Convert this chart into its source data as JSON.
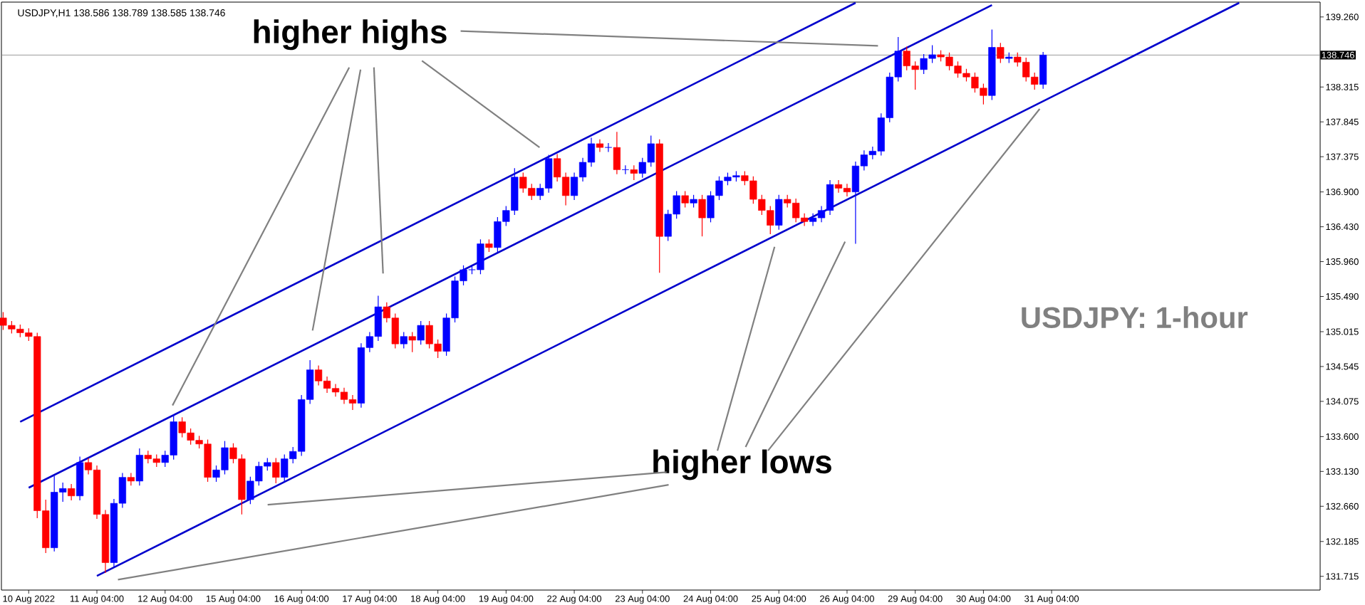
{
  "chart_data": {
    "type": "candlestick",
    "title": "USDJPY,H1  138.586 138.789 138.585 138.746",
    "categories": [
      null,
      null,
      null,
      "10 Aug 2022",
      null,
      null,
      null,
      null,
      null,
      null,
      null,
      "11 Aug 04:00",
      null,
      null,
      null,
      null,
      null,
      null,
      null,
      "12 Aug 04:00",
      null,
      null,
      null,
      null,
      null,
      null,
      null,
      "15 Aug 04:00",
      null,
      null,
      null,
      null,
      null,
      null,
      null,
      "16 Aug 04:00",
      null,
      null,
      null,
      null,
      null,
      null,
      null,
      "17 Aug 04:00",
      null,
      null,
      null,
      null,
      null,
      null,
      null,
      "18 Aug 04:00",
      null,
      null,
      null,
      null,
      null,
      null,
      null,
      "19 Aug 04:00",
      null,
      null,
      null,
      null,
      null,
      null,
      null,
      "22 Aug 04:00",
      null,
      null,
      null,
      null,
      null,
      null,
      null,
      "23 Aug 04:00",
      null,
      null,
      null,
      null,
      null,
      null,
      null,
      "24 Aug 04:00",
      null,
      null,
      null,
      null,
      null,
      null,
      null,
      "25 Aug 04:00",
      null,
      null,
      null,
      null,
      null,
      null,
      null,
      "26 Aug 04:00",
      null,
      null,
      null,
      null,
      null,
      null,
      null,
      "29 Aug 04:00",
      null,
      null,
      null,
      null,
      null,
      null,
      null,
      "30 Aug 04:00",
      null,
      null,
      null,
      null,
      null,
      null,
      null,
      "31 Aug 04:00",
      null,
      null,
      null,
      null,
      null,
      null,
      null,
      null,
      null,
      null,
      null,
      null,
      null,
      null,
      null,
      null,
      null,
      null,
      null,
      null,
      null,
      null,
      null,
      null,
      null,
      null,
      null,
      null,
      null,
      null,
      null
    ],
    "ohlc": [
      [
        135.2,
        135.28,
        135.04,
        135.1
      ],
      [
        135.1,
        135.16,
        134.99,
        135.05
      ],
      [
        135.05,
        135.11,
        134.94,
        135.0
      ],
      [
        135.0,
        135.06,
        134.89,
        134.95
      ],
      [
        134.95,
        135.0,
        132.5,
        132.6
      ],
      [
        132.6,
        132.75,
        132.03,
        132.1
      ],
      [
        132.1,
        133.07,
        132.05,
        132.85
      ],
      [
        132.85,
        132.98,
        132.72,
        132.9
      ],
      [
        132.9,
        132.96,
        132.74,
        132.8
      ],
      [
        132.8,
        133.33,
        132.74,
        133.25
      ],
      [
        133.25,
        133.31,
        133.09,
        133.15
      ],
      [
        133.15,
        133.21,
        132.49,
        132.55
      ],
      [
        132.55,
        132.61,
        131.76,
        131.9
      ],
      [
        131.9,
        132.76,
        131.84,
        132.7
      ],
      [
        132.7,
        133.11,
        132.64,
        133.05
      ],
      [
        133.05,
        133.11,
        132.94,
        133.0
      ],
      [
        133.0,
        133.44,
        132.94,
        133.35
      ],
      [
        133.35,
        133.41,
        133.24,
        133.3
      ],
      [
        133.3,
        133.36,
        133.19,
        133.25
      ],
      [
        133.25,
        133.41,
        133.19,
        133.35
      ],
      [
        133.35,
        133.9,
        133.29,
        133.8
      ],
      [
        133.8,
        133.86,
        133.59,
        133.65
      ],
      [
        133.65,
        133.71,
        133.49,
        133.55
      ],
      [
        133.55,
        133.61,
        133.44,
        133.5
      ],
      [
        133.5,
        133.56,
        132.99,
        133.05
      ],
      [
        133.05,
        133.21,
        132.99,
        133.15
      ],
      [
        133.15,
        133.54,
        133.09,
        133.45
      ],
      [
        133.45,
        133.51,
        133.24,
        133.3
      ],
      [
        133.3,
        133.36,
        132.55,
        132.75
      ],
      [
        132.75,
        133.06,
        132.69,
        133.0
      ],
      [
        133.0,
        133.26,
        132.94,
        133.2
      ],
      [
        133.2,
        133.31,
        133.14,
        133.25
      ],
      [
        133.25,
        133.31,
        132.97,
        133.05
      ],
      [
        133.05,
        133.36,
        132.99,
        133.3
      ],
      [
        133.3,
        133.46,
        133.24,
        133.4
      ],
      [
        133.4,
        134.16,
        133.34,
        134.1
      ],
      [
        134.1,
        134.63,
        134.04,
        134.5
      ],
      [
        134.5,
        134.56,
        134.29,
        134.35
      ],
      [
        134.35,
        134.41,
        134.19,
        134.25
      ],
      [
        134.25,
        134.31,
        134.14,
        134.2
      ],
      [
        134.2,
        134.26,
        134.04,
        134.1
      ],
      [
        134.1,
        134.16,
        133.96,
        134.05
      ],
      [
        134.05,
        134.86,
        133.99,
        134.8
      ],
      [
        134.8,
        135.01,
        134.74,
        134.95
      ],
      [
        134.95,
        135.5,
        134.89,
        135.35
      ],
      [
        135.35,
        135.41,
        135.14,
        135.2
      ],
      [
        135.2,
        135.26,
        134.79,
        134.85
      ],
      [
        134.85,
        135.01,
        134.79,
        134.95
      ],
      [
        134.95,
        135.01,
        134.74,
        134.9
      ],
      [
        134.9,
        135.16,
        134.84,
        135.1
      ],
      [
        135.1,
        135.16,
        134.79,
        134.85
      ],
      [
        134.85,
        134.91,
        134.66,
        134.75
      ],
      [
        134.75,
        135.26,
        134.69,
        135.2
      ],
      [
        135.2,
        135.76,
        135.14,
        135.7
      ],
      [
        135.7,
        135.91,
        135.64,
        135.85
      ],
      [
        135.85,
        135.91,
        135.79,
        135.85
      ],
      [
        135.85,
        136.26,
        135.79,
        136.2
      ],
      [
        136.2,
        136.26,
        136.09,
        136.15
      ],
      [
        136.15,
        136.56,
        136.09,
        136.5
      ],
      [
        136.5,
        136.71,
        136.44,
        136.65
      ],
      [
        136.65,
        137.22,
        136.59,
        137.1
      ],
      [
        137.1,
        137.16,
        136.89,
        136.95
      ],
      [
        136.95,
        137.01,
        136.79,
        136.85
      ],
      [
        136.85,
        137.01,
        136.79,
        136.95
      ],
      [
        136.95,
        137.4,
        136.89,
        137.35
      ],
      [
        137.35,
        137.41,
        137.04,
        137.1
      ],
      [
        137.1,
        137.16,
        136.72,
        136.85
      ],
      [
        136.85,
        137.16,
        136.79,
        137.1
      ],
      [
        137.1,
        137.36,
        137.04,
        137.3
      ],
      [
        137.3,
        137.63,
        137.24,
        137.55
      ],
      [
        137.55,
        137.61,
        137.44,
        137.5
      ],
      [
        137.5,
        137.56,
        137.44,
        137.5
      ],
      [
        137.5,
        137.71,
        137.14,
        137.2
      ],
      [
        137.2,
        137.26,
        137.14,
        137.2
      ],
      [
        137.2,
        137.26,
        137.06,
        137.15
      ],
      [
        137.15,
        137.36,
        137.09,
        137.3
      ],
      [
        137.3,
        137.66,
        137.24,
        137.55
      ],
      [
        137.55,
        137.61,
        135.81,
        136.3
      ],
      [
        136.3,
        136.66,
        136.24,
        136.6
      ],
      [
        136.6,
        136.91,
        136.54,
        136.85
      ],
      [
        136.85,
        136.91,
        136.69,
        136.75
      ],
      [
        136.75,
        136.86,
        136.69,
        136.8
      ],
      [
        136.8,
        136.86,
        136.3,
        136.55
      ],
      [
        136.55,
        136.91,
        136.49,
        136.85
      ],
      [
        136.85,
        137.11,
        136.79,
        137.05
      ],
      [
        137.05,
        137.16,
        136.99,
        137.1
      ],
      [
        137.1,
        137.18,
        137.04,
        137.12
      ],
      [
        137.12,
        137.18,
        136.99,
        137.05
      ],
      [
        137.05,
        137.11,
        136.74,
        136.8
      ],
      [
        136.8,
        136.86,
        136.59,
        136.65
      ],
      [
        136.65,
        136.71,
        136.33,
        136.45
      ],
      [
        136.45,
        136.86,
        136.39,
        136.8
      ],
      [
        136.8,
        136.86,
        136.69,
        136.75
      ],
      [
        136.75,
        136.81,
        136.49,
        136.55
      ],
      [
        136.55,
        136.61,
        136.44,
        136.5
      ],
      [
        136.5,
        136.61,
        136.44,
        136.55
      ],
      [
        136.55,
        136.71,
        136.49,
        136.65
      ],
      [
        136.65,
        137.06,
        136.59,
        137.0
      ],
      [
        137.0,
        137.06,
        136.89,
        136.95
      ],
      [
        136.95,
        137.01,
        136.84,
        136.9
      ],
      [
        136.9,
        137.31,
        136.2,
        137.25
      ],
      [
        137.25,
        137.46,
        137.19,
        137.4
      ],
      [
        137.4,
        137.51,
        137.34,
        137.45
      ],
      [
        137.45,
        137.96,
        137.39,
        137.9
      ],
      [
        137.9,
        138.51,
        137.84,
        138.45
      ],
      [
        138.45,
        138.99,
        138.39,
        138.8
      ],
      [
        138.8,
        138.86,
        138.54,
        138.6
      ],
      [
        138.6,
        138.66,
        138.28,
        138.55
      ],
      [
        138.55,
        138.76,
        138.49,
        138.7
      ],
      [
        138.7,
        138.88,
        138.64,
        138.75
      ],
      [
        138.75,
        138.81,
        138.66,
        138.72
      ],
      [
        138.72,
        138.78,
        138.54,
        138.6
      ],
      [
        138.6,
        138.66,
        138.44,
        138.5
      ],
      [
        138.5,
        138.56,
        138.39,
        138.45
      ],
      [
        138.45,
        138.51,
        138.24,
        138.3
      ],
      [
        138.3,
        138.36,
        138.08,
        138.2
      ],
      [
        138.2,
        139.09,
        138.14,
        138.85
      ],
      [
        138.85,
        138.91,
        138.64,
        138.7
      ],
      [
        138.7,
        138.78,
        138.64,
        138.72
      ],
      [
        138.72,
        138.78,
        138.59,
        138.65
      ],
      [
        138.65,
        138.71,
        138.39,
        138.45
      ],
      [
        138.45,
        138.51,
        138.28,
        138.35
      ],
      [
        138.35,
        138.789,
        138.29,
        138.746
      ],
      null,
      null,
      null,
      null,
      null,
      null,
      null,
      null,
      null,
      null,
      null,
      null,
      null,
      null,
      null,
      null,
      null,
      null,
      null,
      null,
      null,
      null,
      null,
      null,
      null,
      null,
      null,
      null,
      null,
      null,
      null,
      null
    ],
    "colors": [
      "#ff0000",
      "#ff0000",
      "#ff0000",
      "#ff0000",
      "#ff0000",
      "#ff0000",
      "#0000ff",
      "#0000ff",
      "#ff0000",
      "#0000ff",
      "#ff0000",
      "#ff0000",
      "#ff0000",
      "#0000ff",
      "#0000ff",
      "#ff0000",
      "#0000ff",
      "#ff0000",
      "#ff0000",
      "#0000ff",
      "#0000ff",
      "#ff0000",
      "#ff0000",
      "#ff0000",
      "#ff0000",
      "#0000ff",
      "#0000ff",
      "#ff0000",
      "#ff0000",
      "#0000ff",
      "#0000ff",
      "#0000ff",
      "#ff0000",
      "#0000ff",
      "#0000ff",
      "#0000ff",
      "#0000ff",
      "#ff0000",
      "#ff0000",
      "#ff0000",
      "#ff0000",
      "#ff0000",
      "#0000ff",
      "#0000ff",
      "#0000ff",
      "#ff0000",
      "#ff0000",
      "#0000ff",
      "#ff0000",
      "#0000ff",
      "#ff0000",
      "#ff0000",
      "#0000ff",
      "#0000ff",
      "#0000ff",
      "#0000ff",
      "#0000ff",
      "#ff0000",
      "#0000ff",
      "#0000ff",
      "#0000ff",
      "#ff0000",
      "#ff0000",
      "#0000ff",
      "#0000ff",
      "#ff0000",
      "#ff0000",
      "#0000ff",
      "#0000ff",
      "#0000ff",
      "#ff0000",
      "#0000ff",
      "#ff0000",
      "#0000ff",
      "#ff0000",
      "#0000ff",
      "#0000ff",
      "#ff0000",
      "#0000ff",
      "#0000ff",
      "#ff0000",
      "#0000ff",
      "#ff0000",
      "#0000ff",
      "#0000ff",
      "#0000ff",
      "#0000ff",
      "#ff0000",
      "#ff0000",
      "#ff0000",
      "#ff0000",
      "#0000ff",
      "#ff0000",
      "#ff0000",
      "#ff0000",
      "#0000ff",
      "#0000ff",
      "#0000ff",
      "#ff0000",
      "#ff0000",
      "#0000ff",
      "#0000ff",
      "#0000ff",
      "#0000ff",
      "#0000ff",
      "#0000ff",
      "#ff0000",
      "#ff0000",
      "#0000ff",
      "#0000ff",
      "#ff0000",
      "#ff0000",
      "#ff0000",
      "#ff0000",
      "#ff0000",
      "#ff0000",
      "#0000ff",
      "#ff0000",
      "#0000ff",
      "#ff0000",
      "#ff0000",
      "#ff0000",
      "#0000ff",
      null,
      null,
      null,
      null,
      null,
      null,
      null,
      null,
      null,
      null,
      null,
      null,
      null,
      null,
      null,
      null,
      null,
      null,
      null,
      null,
      null,
      null,
      null,
      null,
      null,
      null,
      null,
      null,
      null,
      null,
      null,
      null
    ],
    "series": [
      {
        "type": "line",
        "color": "#0000cc",
        "values": [
          null,
          null,
          133.8,
          null,
          null,
          null,
          null,
          null,
          null,
          null,
          null,
          null,
          null,
          null,
          null,
          null,
          null,
          null,
          null,
          null,
          null,
          null,
          null,
          null,
          null,
          null,
          null,
          null,
          null,
          null,
          null,
          null,
          null,
          null,
          null,
          null,
          null,
          null,
          null,
          null,
          null,
          null,
          null,
          null,
          null,
          null,
          null,
          null,
          null,
          null,
          null,
          null,
          null,
          null,
          null,
          null,
          null,
          null,
          null,
          null,
          null,
          null,
          null,
          null,
          null,
          null,
          null,
          null,
          null,
          null,
          null,
          null,
          null,
          null,
          null,
          null,
          null,
          null,
          null,
          null,
          null,
          null,
          null,
          null,
          null,
          null,
          null,
          null,
          null,
          null,
          null,
          null,
          null,
          null,
          null,
          null,
          null,
          null,
          null,
          null,
          139.45,
          null,
          null,
          null,
          null,
          null,
          null,
          null,
          null,
          null,
          null,
          null,
          null,
          null,
          null,
          null,
          null,
          null,
          null,
          null,
          null,
          null,
          null,
          null,
          null,
          null,
          null,
          null,
          null,
          null,
          null,
          null,
          null,
          null,
          null,
          null,
          null,
          null,
          null,
          null,
          null,
          null,
          null,
          null,
          null,
          null,
          null,
          null,
          null,
          null,
          null,
          null,
          null,
          null,
          null
        ]
      },
      {
        "type": "line",
        "color": "#0000cc",
        "values": [
          null,
          null,
          null,
          132.91,
          null,
          null,
          null,
          null,
          null,
          null,
          null,
          null,
          null,
          null,
          null,
          null,
          null,
          null,
          null,
          null,
          null,
          null,
          null,
          null,
          null,
          null,
          null,
          null,
          null,
          null,
          null,
          null,
          null,
          null,
          null,
          null,
          null,
          null,
          null,
          null,
          null,
          null,
          null,
          null,
          null,
          null,
          null,
          null,
          null,
          null,
          null,
          null,
          null,
          null,
          null,
          null,
          null,
          null,
          null,
          null,
          null,
          null,
          null,
          null,
          null,
          null,
          null,
          null,
          null,
          null,
          null,
          null,
          null,
          null,
          null,
          null,
          null,
          null,
          null,
          null,
          null,
          null,
          null,
          null,
          null,
          null,
          null,
          null,
          null,
          null,
          null,
          null,
          null,
          null,
          null,
          null,
          null,
          null,
          null,
          null,
          null,
          null,
          null,
          null,
          null,
          null,
          null,
          null,
          null,
          null,
          null,
          null,
          null,
          null,
          null,
          null,
          139.42,
          null,
          null,
          null,
          null,
          null,
          null,
          null,
          null,
          null,
          null,
          null,
          null,
          null,
          null,
          null,
          null,
          null,
          null,
          null,
          null,
          null,
          null,
          null,
          null,
          null,
          null,
          null,
          null,
          null,
          null,
          null,
          null,
          null,
          null,
          null,
          null,
          null,
          null
        ]
      },
      {
        "type": "line",
        "color": "#0000cc",
        "values": [
          null,
          null,
          null,
          null,
          null,
          null,
          null,
          null,
          null,
          null,
          null,
          131.72,
          null,
          null,
          null,
          null,
          null,
          null,
          null,
          null,
          null,
          null,
          null,
          null,
          null,
          null,
          null,
          null,
          null,
          null,
          null,
          null,
          null,
          null,
          null,
          null,
          null,
          null,
          null,
          null,
          null,
          null,
          null,
          null,
          null,
          null,
          null,
          null,
          null,
          null,
          null,
          null,
          null,
          null,
          null,
          null,
          null,
          null,
          null,
          null,
          null,
          null,
          null,
          null,
          null,
          null,
          null,
          null,
          null,
          null,
          null,
          null,
          null,
          null,
          null,
          null,
          null,
          null,
          null,
          null,
          null,
          null,
          null,
          null,
          null,
          null,
          null,
          null,
          null,
          null,
          null,
          null,
          null,
          null,
          null,
          null,
          null,
          null,
          null,
          null,
          null,
          null,
          null,
          null,
          null,
          null,
          null,
          null,
          null,
          null,
          null,
          null,
          null,
          null,
          null,
          null,
          null,
          null,
          null,
          null,
          null,
          null,
          null,
          null,
          null,
          null,
          null,
          null,
          null,
          null,
          null,
          null,
          null,
          null,
          null,
          null,
          null,
          null,
          null,
          null,
          null,
          null,
          null,
          null,
          null,
          139.45,
          null,
          null,
          null,
          null,
          null,
          null,
          null,
          null,
          null
        ]
      }
    ],
    "ref_lines": [
      {
        "axis": "y",
        "value": 138.746,
        "label": "138.746",
        "color": "#808080"
      }
    ],
    "annotations": [
      "higher highs",
      "higher lows",
      "USDJPY: 1-hour"
    ],
    "ylim": [
      131.53,
      139.46
    ],
    "yticks": [
      {
        "value": 139.26,
        "label": "139.260"
      },
      {
        "value": 138.315,
        "label": "138.315"
      },
      {
        "value": 137.845,
        "label": "137.845"
      },
      {
        "value": 137.375,
        "label": "137.375"
      },
      {
        "value": 136.9,
        "label": "136.900"
      },
      {
        "value": 136.43,
        "label": "136.430"
      },
      {
        "value": 135.96,
        "label": "135.960"
      },
      {
        "value": 135.49,
        "label": "135.490"
      },
      {
        "value": 135.015,
        "label": "135.015"
      },
      {
        "value": 134.545,
        "label": "134.545"
      },
      {
        "value": 134.075,
        "label": "134.075"
      },
      {
        "value": 133.6,
        "label": "133.600"
      },
      {
        "value": 133.13,
        "label": "133.130"
      },
      {
        "value": 132.66,
        "label": "132.660"
      },
      {
        "value": 132.185,
        "label": "132.185"
      },
      {
        "value": 131.715,
        "label": "131.715"
      }
    ]
  }
}
